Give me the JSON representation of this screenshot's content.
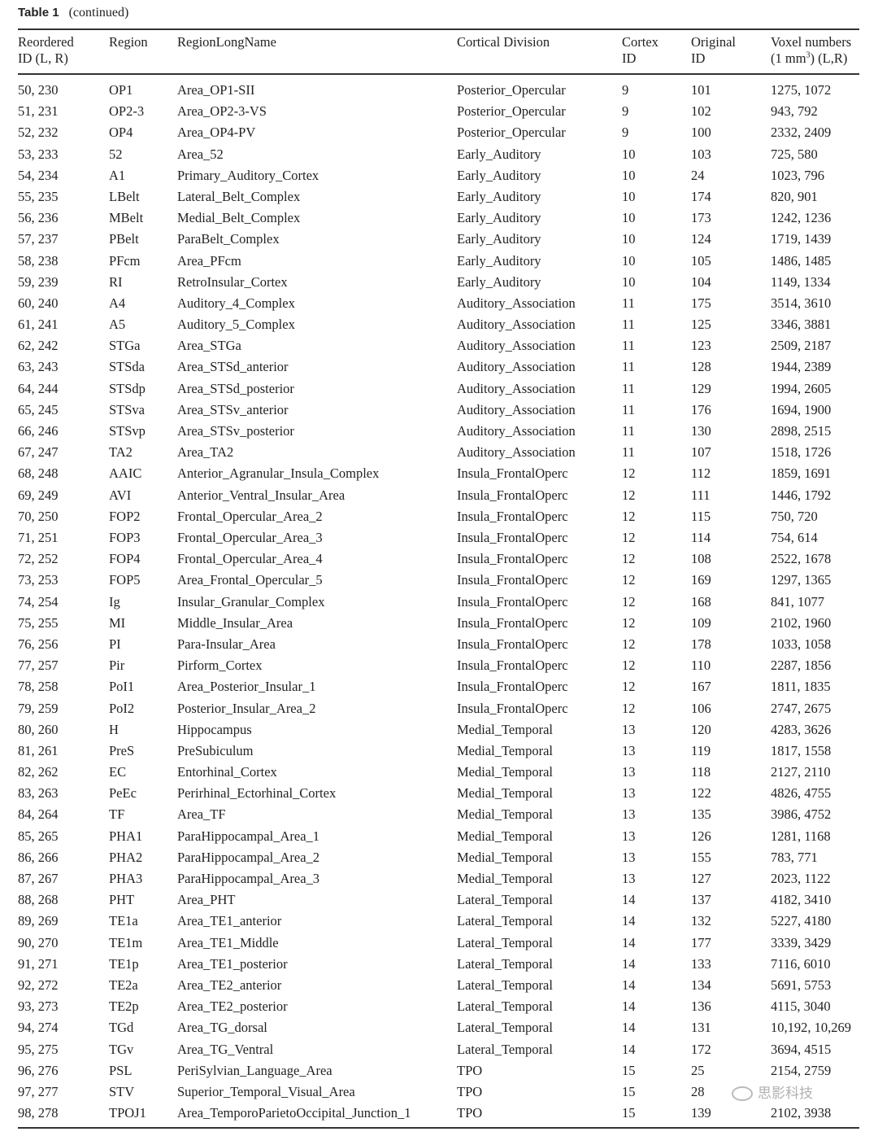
{
  "caption": {
    "label": "Table 1",
    "text": "(continued)"
  },
  "headers": [
    [
      "Reordered",
      "ID (L, R)"
    ],
    [
      "Region",
      ""
    ],
    [
      "RegionLongName",
      ""
    ],
    [
      "Cortical Division",
      ""
    ],
    [
      "Cortex",
      "ID"
    ],
    [
      "Original",
      "ID"
    ],
    [
      "Voxel numbers",
      "(1 mm³) (L,R)"
    ]
  ],
  "rows": [
    [
      "50, 230",
      "OP1",
      "Area_OP1-SII",
      "Posterior_Opercular",
      "9",
      "101",
      "1275, 1072"
    ],
    [
      "51, 231",
      "OP2-3",
      "Area_OP2-3-VS",
      "Posterior_Opercular",
      "9",
      "102",
      "943, 792"
    ],
    [
      "52, 232",
      "OP4",
      "Area_OP4-PV",
      "Posterior_Opercular",
      "9",
      "100",
      "2332, 2409"
    ],
    [
      "53, 233",
      "52",
      "Area_52",
      "Early_Auditory",
      "10",
      "103",
      "725, 580"
    ],
    [
      "54, 234",
      "A1",
      "Primary_Auditory_Cortex",
      "Early_Auditory",
      "10",
      "24",
      "1023, 796"
    ],
    [
      "55, 235",
      "LBelt",
      "Lateral_Belt_Complex",
      "Early_Auditory",
      "10",
      "174",
      "820, 901"
    ],
    [
      "56, 236",
      "MBelt",
      "Medial_Belt_Complex",
      "Early_Auditory",
      "10",
      "173",
      "1242, 1236"
    ],
    [
      "57, 237",
      "PBelt",
      "ParaBelt_Complex",
      "Early_Auditory",
      "10",
      "124",
      "1719, 1439"
    ],
    [
      "58, 238",
      "PFcm",
      "Area_PFcm",
      "Early_Auditory",
      "10",
      "105",
      "1486, 1485"
    ],
    [
      "59, 239",
      "RI",
      "RetroInsular_Cortex",
      "Early_Auditory",
      "10",
      "104",
      "1149, 1334"
    ],
    [
      "60, 240",
      "A4",
      "Auditory_4_Complex",
      "Auditory_Association",
      "11",
      "175",
      "3514, 3610"
    ],
    [
      "61, 241",
      "A5",
      "Auditory_5_Complex",
      "Auditory_Association",
      "11",
      "125",
      "3346, 3881"
    ],
    [
      "62, 242",
      "STGa",
      "Area_STGa",
      "Auditory_Association",
      "11",
      "123",
      "2509, 2187"
    ],
    [
      "63, 243",
      "STSda",
      "Area_STSd_anterior",
      "Auditory_Association",
      "11",
      "128",
      "1944, 2389"
    ],
    [
      "64, 244",
      "STSdp",
      "Area_STSd_posterior",
      "Auditory_Association",
      "11",
      "129",
      "1994, 2605"
    ],
    [
      "65, 245",
      "STSva",
      "Area_STSv_anterior",
      "Auditory_Association",
      "11",
      "176",
      "1694, 1900"
    ],
    [
      "66, 246",
      "STSvp",
      "Area_STSv_posterior",
      "Auditory_Association",
      "11",
      "130",
      "2898, 2515"
    ],
    [
      "67, 247",
      "TA2",
      "Area_TA2",
      "Auditory_Association",
      "11",
      "107",
      "1518, 1726"
    ],
    [
      "68, 248",
      "AAIC",
      "Anterior_Agranular_Insula_Complex",
      "Insula_FrontalOperc",
      "12",
      "112",
      "1859, 1691"
    ],
    [
      "69, 249",
      "AVI",
      "Anterior_Ventral_Insular_Area",
      "Insula_FrontalOperc",
      "12",
      "111",
      "1446, 1792"
    ],
    [
      "70, 250",
      "FOP2",
      "Frontal_Opercular_Area_2",
      "Insula_FrontalOperc",
      "12",
      "115",
      "750, 720"
    ],
    [
      "71, 251",
      "FOP3",
      "Frontal_Opercular_Area_3",
      "Insula_FrontalOperc",
      "12",
      "114",
      "754, 614"
    ],
    [
      "72, 252",
      "FOP4",
      "Frontal_Opercular_Area_4",
      "Insula_FrontalOperc",
      "12",
      "108",
      "2522, 1678"
    ],
    [
      "73, 253",
      "FOP5",
      "Area_Frontal_Opercular_5",
      "Insula_FrontalOperc",
      "12",
      "169",
      "1297, 1365"
    ],
    [
      "74, 254",
      "Ig",
      "Insular_Granular_Complex",
      "Insula_FrontalOperc",
      "12",
      "168",
      "841, 1077"
    ],
    [
      "75, 255",
      "MI",
      "Middle_Insular_Area",
      "Insula_FrontalOperc",
      "12",
      "109",
      "2102, 1960"
    ],
    [
      "76, 256",
      "PI",
      "Para-Insular_Area",
      "Insula_FrontalOperc",
      "12",
      "178",
      "1033, 1058"
    ],
    [
      "77, 257",
      "Pir",
      "Pirform_Cortex",
      "Insula_FrontalOperc",
      "12",
      "110",
      "2287, 1856"
    ],
    [
      "78, 258",
      "PoI1",
      "Area_Posterior_Insular_1",
      "Insula_FrontalOperc",
      "12",
      "167",
      "1811, 1835"
    ],
    [
      "79, 259",
      "PoI2",
      "Posterior_Insular_Area_2",
      "Insula_FrontalOperc",
      "12",
      "106",
      "2747, 2675"
    ],
    [
      "80, 260",
      "H",
      "Hippocampus",
      "Medial_Temporal",
      "13",
      "120",
      "4283, 3626"
    ],
    [
      "81, 261",
      "PreS",
      "PreSubiculum",
      "Medial_Temporal",
      "13",
      "119",
      "1817, 1558"
    ],
    [
      "82, 262",
      "EC",
      "Entorhinal_Cortex",
      "Medial_Temporal",
      "13",
      "118",
      "2127, 2110"
    ],
    [
      "83, 263",
      "PeEc",
      "Perirhinal_Ectorhinal_Cortex",
      "Medial_Temporal",
      "13",
      "122",
      "4826, 4755"
    ],
    [
      "84, 264",
      "TF",
      "Area_TF",
      "Medial_Temporal",
      "13",
      "135",
      "3986, 4752"
    ],
    [
      "85, 265",
      "PHA1",
      "ParaHippocampal_Area_1",
      "Medial_Temporal",
      "13",
      "126",
      "1281, 1168"
    ],
    [
      "86, 266",
      "PHA2",
      "ParaHippocampal_Area_2",
      "Medial_Temporal",
      "13",
      "155",
      "783, 771"
    ],
    [
      "87, 267",
      "PHA3",
      "ParaHippocampal_Area_3",
      "Medial_Temporal",
      "13",
      "127",
      "2023, 1122"
    ],
    [
      "88, 268",
      "PHT",
      "Area_PHT",
      "Lateral_Temporal",
      "14",
      "137",
      "4182, 3410"
    ],
    [
      "89, 269",
      "TE1a",
      "Area_TE1_anterior",
      "Lateral_Temporal",
      "14",
      "132",
      "5227, 4180"
    ],
    [
      "90, 270",
      "TE1m",
      "Area_TE1_Middle",
      "Lateral_Temporal",
      "14",
      "177",
      "3339, 3429"
    ],
    [
      "91, 271",
      "TE1p",
      "Area_TE1_posterior",
      "Lateral_Temporal",
      "14",
      "133",
      "7116, 6010"
    ],
    [
      "92, 272",
      "TE2a",
      "Area_TE2_anterior",
      "Lateral_Temporal",
      "14",
      "134",
      "5691, 5753"
    ],
    [
      "93, 273",
      "TE2p",
      "Area_TE2_posterior",
      "Lateral_Temporal",
      "14",
      "136",
      "4115, 3040"
    ],
    [
      "94, 274",
      "TGd",
      "Area_TG_dorsal",
      "Lateral_Temporal",
      "14",
      "131",
      "10,192, 10,269"
    ],
    [
      "95, 275",
      "TGv",
      "Area_TG_Ventral",
      "Lateral_Temporal",
      "14",
      "172",
      "3694, 4515"
    ],
    [
      "96, 276",
      "PSL",
      "PeriSylvian_Language_Area",
      "TPO",
      "15",
      "25",
      "2154, 2759"
    ],
    [
      "97, 277",
      "STV",
      "Superior_Temporal_Visual_Area",
      "TPO",
      "15",
      "28",
      ""
    ],
    [
      "98, 278",
      "TPOJ1",
      "Area_TemporoParietoOccipital_Junction_1",
      "TPO",
      "15",
      "139",
      "2102, 3938"
    ]
  ],
  "watermark": "思影科技"
}
